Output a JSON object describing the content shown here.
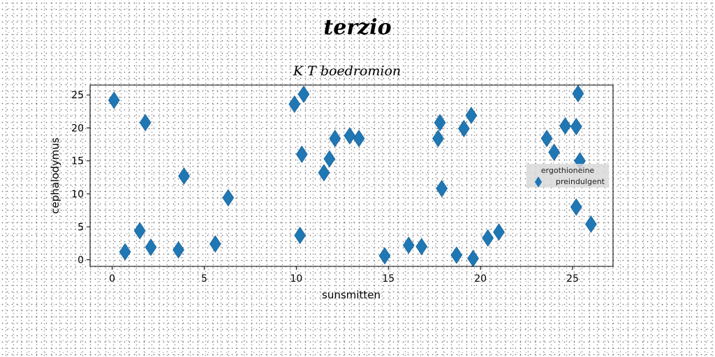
{
  "chart_data": {
    "type": "scatter",
    "title": "terzio",
    "subtitle": "K T boedromion",
    "xlabel": "sunsmitten",
    "ylabel": "cephalodymus",
    "xlim": [
      -1.2,
      27.2
    ],
    "ylim": [
      -1,
      26.5
    ],
    "xticks": [
      0,
      5,
      10,
      15,
      20,
      25
    ],
    "yticks": [
      0,
      5,
      10,
      15,
      20,
      25
    ],
    "grid": false,
    "legend": {
      "title": "ergothioneine",
      "placement": "right"
    },
    "series": [
      {
        "name": "preindulgent",
        "color": "#1f77b4",
        "marker": "diamond",
        "points": [
          [
            0.1,
            24.2
          ],
          [
            0.7,
            1.2
          ],
          [
            1.5,
            4.4
          ],
          [
            1.8,
            20.8
          ],
          [
            2.1,
            1.9
          ],
          [
            3.6,
            1.5
          ],
          [
            3.9,
            12.7
          ],
          [
            5.6,
            2.4
          ],
          [
            6.3,
            9.4
          ],
          [
            9.9,
            23.6
          ],
          [
            10.2,
            3.7
          ],
          [
            10.3,
            16.0
          ],
          [
            10.4,
            25.1
          ],
          [
            11.5,
            13.2
          ],
          [
            11.8,
            15.3
          ],
          [
            12.1,
            18.4
          ],
          [
            12.9,
            18.8
          ],
          [
            13.4,
            18.4
          ],
          [
            14.8,
            0.6
          ],
          [
            16.1,
            2.2
          ],
          [
            16.8,
            2.0
          ],
          [
            17.7,
            18.4
          ],
          [
            17.8,
            20.8
          ],
          [
            17.9,
            10.8
          ],
          [
            18.7,
            0.7
          ],
          [
            19.1,
            19.9
          ],
          [
            19.5,
            21.9
          ],
          [
            19.6,
            0.2
          ],
          [
            20.4,
            3.3
          ],
          [
            21.0,
            4.2
          ],
          [
            23.6,
            18.4
          ],
          [
            24.0,
            16.3
          ],
          [
            24.6,
            20.3
          ],
          [
            25.2,
            20.2
          ],
          [
            25.2,
            8.0
          ],
          [
            25.3,
            25.2
          ],
          [
            25.4,
            15.0
          ],
          [
            26.0,
            5.4
          ]
        ]
      }
    ]
  }
}
